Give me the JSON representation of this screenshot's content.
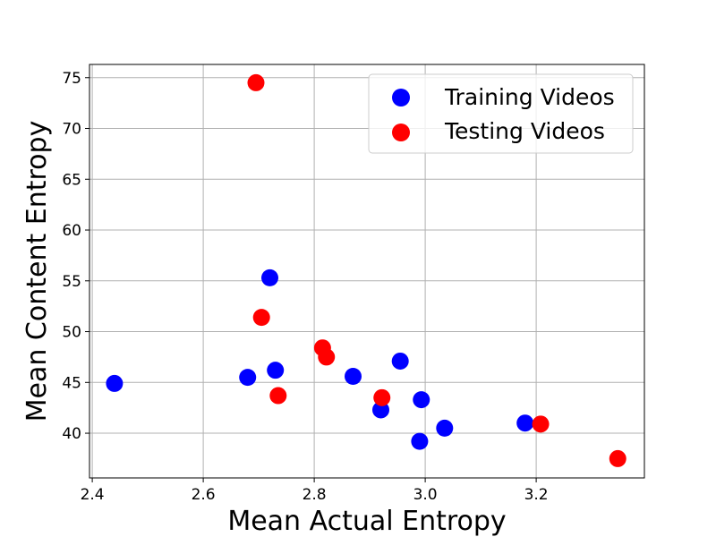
{
  "chart_data": {
    "type": "scatter",
    "title": "",
    "xlabel": "Mean Actual Entropy",
    "ylabel": "Mean Content Entropy",
    "xlim": [
      2.395,
      3.395
    ],
    "ylim": [
      35.6,
      76.3
    ],
    "xticks": [
      2.4,
      2.6,
      2.8,
      3.0,
      3.2
    ],
    "xtick_labels": [
      "2.4",
      "2.6",
      "2.8",
      "3.0",
      "3.2"
    ],
    "yticks": [
      40,
      45,
      50,
      55,
      60,
      65,
      70,
      75
    ],
    "ytick_labels": [
      "40",
      "45",
      "50",
      "55",
      "60",
      "65",
      "70",
      "75"
    ],
    "grid": true,
    "legend_position": "top-right",
    "series": [
      {
        "name": "Training Videos",
        "color": "#0000ff",
        "points": [
          {
            "x": 2.44,
            "y": 44.9
          },
          {
            "x": 2.68,
            "y": 45.5
          },
          {
            "x": 2.72,
            "y": 55.3
          },
          {
            "x": 2.73,
            "y": 46.2
          },
          {
            "x": 2.87,
            "y": 45.6
          },
          {
            "x": 2.92,
            "y": 42.3
          },
          {
            "x": 2.955,
            "y": 47.1
          },
          {
            "x": 2.99,
            "y": 39.2
          },
          {
            "x": 2.993,
            "y": 43.3
          },
          {
            "x": 3.035,
            "y": 40.5
          },
          {
            "x": 3.18,
            "y": 41.0
          }
        ]
      },
      {
        "name": "Testing Videos",
        "color": "#ff0000",
        "points": [
          {
            "x": 2.695,
            "y": 74.5
          },
          {
            "x": 2.705,
            "y": 51.4
          },
          {
            "x": 2.735,
            "y": 43.7
          },
          {
            "x": 2.815,
            "y": 48.4
          },
          {
            "x": 2.822,
            "y": 47.5
          },
          {
            "x": 2.922,
            "y": 43.5
          },
          {
            "x": 3.208,
            "y": 40.9
          },
          {
            "x": 3.347,
            "y": 37.5
          }
        ]
      }
    ]
  }
}
